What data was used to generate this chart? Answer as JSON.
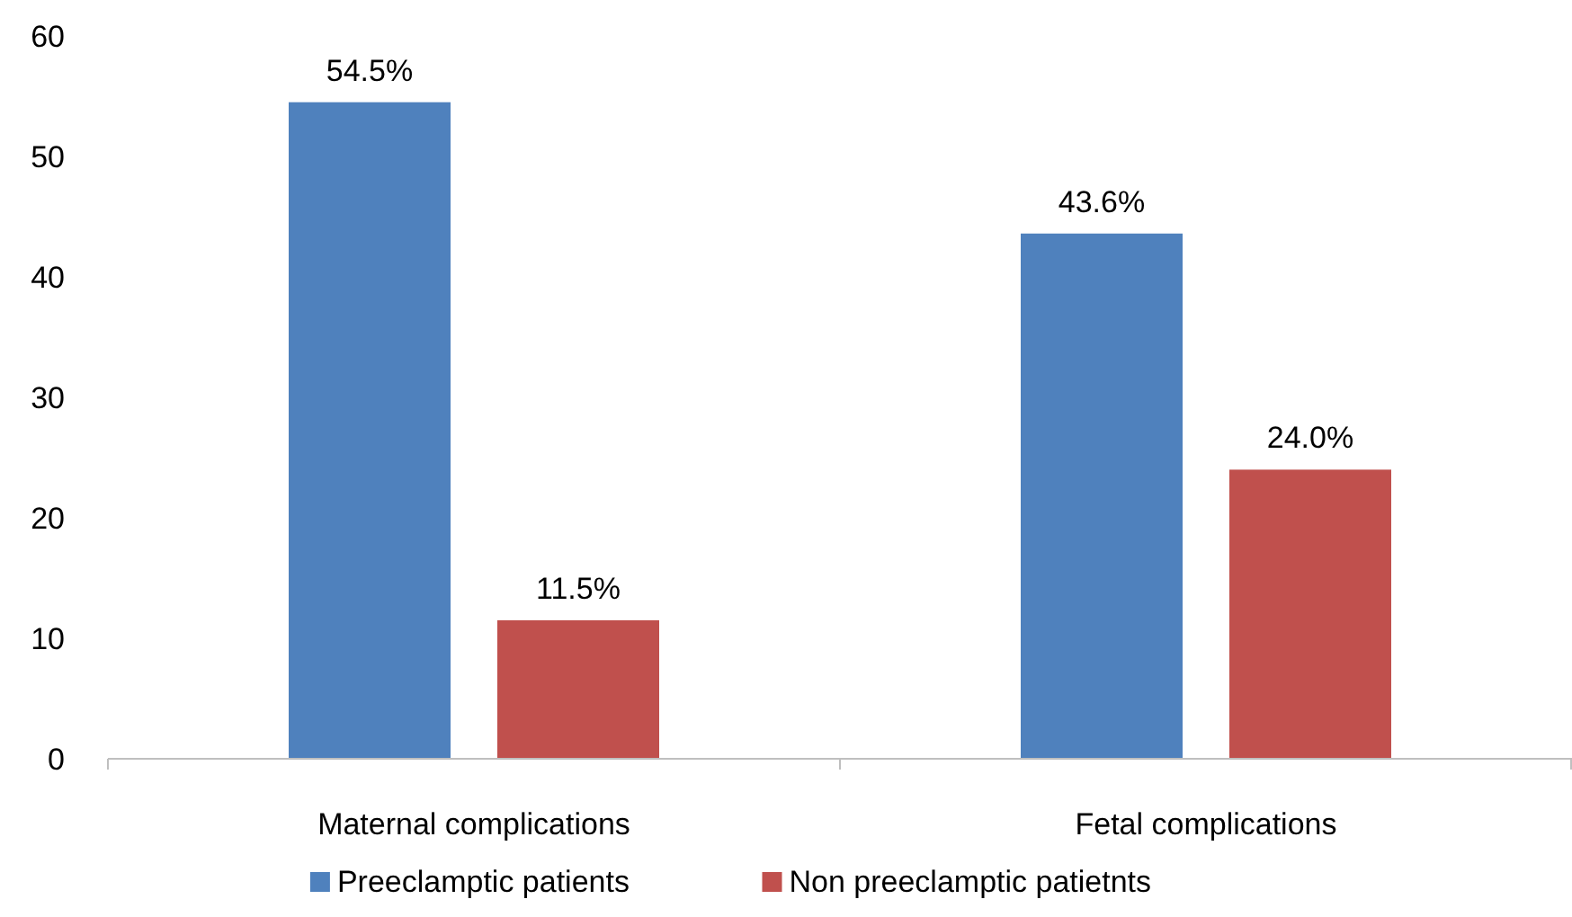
{
  "chart_data": {
    "type": "bar",
    "categories": [
      "Maternal complications",
      "Fetal complications"
    ],
    "series": [
      {
        "name": "Preeclamptic patients",
        "color": "#4f81bd",
        "values": [
          54.5,
          43.6
        ],
        "value_labels": [
          "54.5%",
          "43.6%"
        ]
      },
      {
        "name": "Non preeclamptic patietnts",
        "color": "#c0504d",
        "values": [
          11.5,
          24.0
        ],
        "value_labels": [
          "11.5%",
          "24.0%"
        ]
      }
    ],
    "ylim": [
      0,
      60
    ],
    "yticks": [
      0,
      10,
      20,
      30,
      40,
      50,
      60
    ],
    "grid": false,
    "legend": "bottom"
  }
}
